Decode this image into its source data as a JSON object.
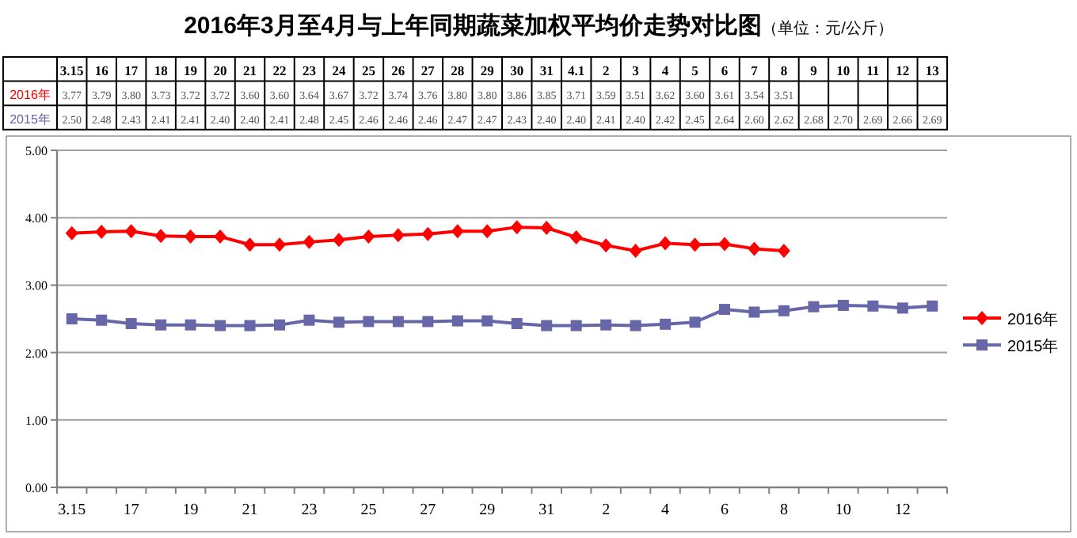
{
  "chart_data": {
    "type": "line",
    "title": "2016年3月至4月与上年同期蔬菜加权平均价走势对比图",
    "subtitle": "（单位：元/公斤）",
    "categories": [
      "3.15",
      "16",
      "17",
      "18",
      "19",
      "20",
      "21",
      "22",
      "23",
      "24",
      "25",
      "26",
      "27",
      "28",
      "29",
      "30",
      "31",
      "4.1",
      "2",
      "3",
      "4",
      "5",
      "6",
      "7",
      "8",
      "9",
      "10",
      "11",
      "12",
      "13"
    ],
    "series": [
      {
        "name": "2016年",
        "color": "#ff0000",
        "marker": "diamond",
        "values": [
          3.77,
          3.79,
          3.8,
          3.73,
          3.72,
          3.72,
          3.6,
          3.6,
          3.64,
          3.67,
          3.72,
          3.74,
          3.76,
          3.8,
          3.8,
          3.86,
          3.85,
          3.71,
          3.59,
          3.51,
          3.62,
          3.6,
          3.61,
          3.54,
          3.51,
          null,
          null,
          null,
          null,
          null
        ],
        "value_labels": [
          "3.77",
          "3.79",
          "3.80",
          "3.73",
          "3.72",
          "3.72",
          "3.60",
          "3.60",
          "3.64",
          "3.67",
          "3.72",
          "3.74",
          "3.76",
          "3.80",
          "3.80",
          "3.86",
          "3.85",
          "3.71",
          "3.59",
          "3.51",
          "3.62",
          "3.60",
          "3.61",
          "3.54",
          "3.51",
          null,
          null,
          null,
          null,
          null
        ]
      },
      {
        "name": "2015年",
        "color": "#6666a8",
        "marker": "square",
        "values": [
          2.5,
          2.48,
          2.43,
          2.41,
          2.41,
          2.4,
          2.4,
          2.41,
          2.48,
          2.45,
          2.46,
          2.46,
          2.46,
          2.47,
          2.47,
          2.43,
          2.4,
          2.4,
          2.41,
          2.4,
          2.42,
          2.45,
          2.64,
          2.6,
          2.62,
          2.68,
          2.7,
          2.69,
          2.66,
          2.69
        ],
        "value_labels": [
          "2.50",
          "2.48",
          "2.43",
          "2.41",
          "2.41",
          "2.40",
          "2.40",
          "2.41",
          "2.48",
          "2.45",
          "2.46",
          "2.46",
          "2.46",
          "2.47",
          "2.47",
          "2.43",
          "2.40",
          "2.40",
          "2.41",
          "2.40",
          "2.42",
          "2.45",
          "2.64",
          "2.60",
          "2.62",
          "2.68",
          "2.70",
          "2.69",
          "2.66",
          "2.69"
        ]
      }
    ],
    "ylim": [
      0,
      5
    ],
    "yticks": [
      {
        "value": 0,
        "label": "0.00"
      },
      {
        "value": 1,
        "label": "1.00"
      },
      {
        "value": 2,
        "label": "2.00"
      },
      {
        "value": 3,
        "label": "3.00"
      },
      {
        "value": 4,
        "label": "4.00"
      },
      {
        "value": 5,
        "label": "5.00"
      }
    ],
    "grid": "y",
    "legend": "right"
  }
}
